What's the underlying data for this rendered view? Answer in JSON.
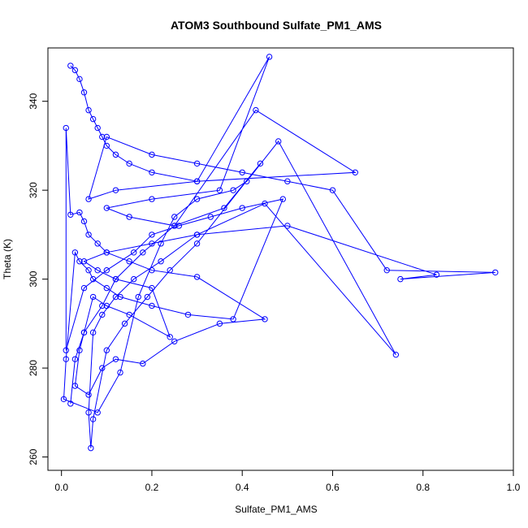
{
  "chart_data": {
    "type": "line",
    "title": "ATOM3 Southbound Sulfate_PM1_AMS",
    "xlabel": "Sulfate_PM1_AMS",
    "ylabel": "Theta (K)",
    "xlim": [
      -0.03,
      1.0
    ],
    "ylim": [
      257,
      352
    ],
    "xticks": [
      "0.0",
      "0.2",
      "0.4",
      "0.6",
      "0.8",
      "1.0"
    ],
    "yticks": [
      "260",
      "280",
      "300",
      "320",
      "340"
    ],
    "grid": false,
    "legend": "none",
    "series_color": "#0000ff",
    "marker": "open-circle",
    "series": [
      {
        "x": [
          0.02,
          0.03,
          0.04,
          0.05,
          0.06,
          0.07,
          0.08,
          0.09,
          0.1,
          0.12,
          0.15,
          0.2,
          0.3,
          0.46,
          0.35,
          0.2,
          0.1,
          0.15,
          0.25,
          0.43,
          0.65,
          0.3,
          0.12,
          0.06,
          0.1,
          0.2,
          0.3,
          0.4,
          0.5,
          0.6,
          0.72,
          0.96,
          0.75,
          0.83,
          0.5,
          0.3,
          0.2,
          0.1,
          0.05,
          0.08,
          0.12,
          0.2,
          0.24,
          0.15,
          0.1,
          0.07,
          0.05,
          0.04,
          0.03,
          0.06,
          0.09,
          0.12,
          0.18,
          0.25,
          0.35,
          0.45,
          0.3,
          0.2,
          0.15,
          0.1,
          0.08,
          0.06,
          0.05,
          0.04,
          0.02,
          0.01,
          0.01,
          0.05,
          0.1,
          0.16,
          0.2,
          0.26,
          0.33,
          0.4,
          0.49,
          0.38,
          0.28,
          0.2,
          0.13,
          0.1,
          0.07,
          0.06,
          0.04,
          0.03,
          0.01,
          0.005,
          0.08,
          0.13,
          0.17,
          0.22,
          0.25,
          0.3,
          0.38,
          0.41,
          0.48,
          0.74,
          0.45,
          0.3,
          0.22,
          0.16,
          0.12,
          0.09,
          0.07,
          0.06,
          0.065,
          0.07,
          0.1,
          0.14,
          0.19,
          0.24,
          0.3,
          0.44,
          0.36,
          0.25,
          0.18,
          0.12,
          0.09,
          0.05,
          0.03,
          0.02
        ],
        "y": [
          348,
          347,
          345,
          342,
          338,
          336,
          334,
          332,
          330,
          328,
          326,
          324,
          322,
          350,
          320,
          318,
          316,
          314,
          312,
          338,
          324,
          322,
          320,
          318,
          332,
          328,
          326,
          324,
          322,
          320,
          302,
          301.5,
          300,
          301,
          312,
          310,
          308,
          306,
          304,
          302,
          300,
          298,
          287,
          292,
          294,
          296,
          288,
          284,
          276,
          274,
          280,
          282,
          281,
          286,
          290,
          291,
          300.5,
          302,
          304,
          306,
          308,
          310,
          313,
          315,
          314.5,
          334,
          284,
          298,
          302,
          306,
          310,
          312,
          314,
          316,
          318,
          291,
          292,
          294,
          296,
          298,
          300,
          302,
          304,
          306,
          282,
          273,
          270,
          279,
          296,
          308,
          314,
          318,
          320,
          322,
          331,
          283,
          317,
          310,
          304,
          300,
          296,
          292,
          288,
          270,
          262,
          268.5,
          284,
          290,
          296,
          302,
          308,
          326,
          316,
          312,
          306,
          300,
          294,
          288,
          282,
          272
        ]
      }
    ]
  }
}
